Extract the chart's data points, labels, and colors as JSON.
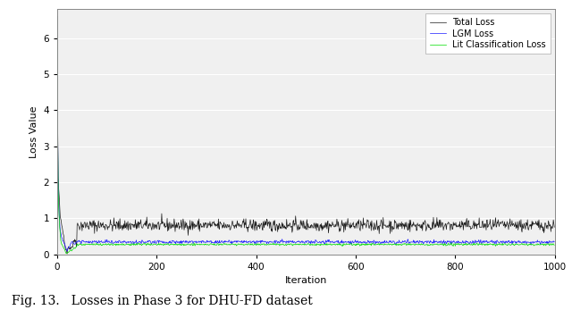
{
  "title": "",
  "xlabel": "Iteration",
  "ylabel": "Loss Value",
  "xlim": [
    0,
    1000
  ],
  "ylim": [
    0,
    6.8
  ],
  "yticks": [
    0,
    1,
    2,
    3,
    4,
    5,
    6
  ],
  "xticks": [
    0,
    200,
    400,
    600,
    800,
    1000
  ],
  "total_loss_color": "#1a1a1a",
  "lgm_loss_color": "#1a1aff",
  "lit_loss_color": "#00dd00",
  "legend_labels": [
    "Total Loss",
    "LGM Loss",
    "Lit Classification Loss"
  ],
  "caption": "Fig. 13.   Losses in Phase 3 for DHU-FD dataset",
  "n_iterations": 1000,
  "seed": 42,
  "bg_color": "#f0f0f0",
  "figure_bg": "#ffffff",
  "grid_color": "#ffffff",
  "grid_lw": 0.8
}
